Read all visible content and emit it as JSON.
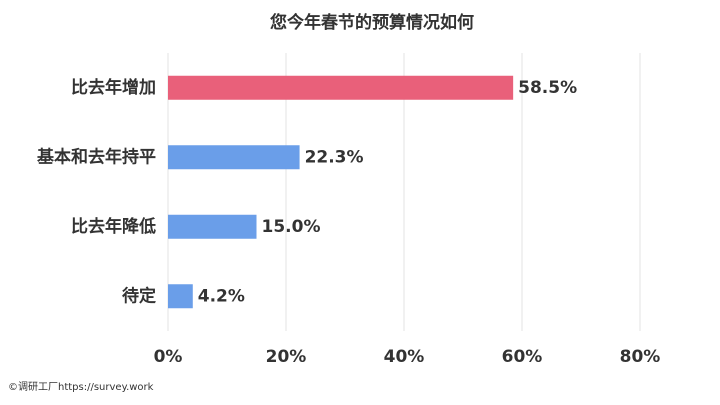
{
  "chart_data": {
    "type": "hbar",
    "title": "您今年春节的预算情况如何",
    "categories": [
      "比去年增加",
      "基本和去年持平",
      "比去年降低",
      "待定"
    ],
    "values": [
      58.5,
      22.3,
      15.0,
      4.2
    ],
    "value_labels": [
      "58.5%",
      "22.3%",
      "15.0%",
      "4.2%"
    ],
    "colors": [
      "#e9607a",
      "#6a9ee9",
      "#6a9ee9",
      "#6a9ee9"
    ],
    "xlim": [
      0,
      80
    ],
    "xticks": [
      {
        "value": 0,
        "label": "0%"
      },
      {
        "value": 20,
        "label": "20%"
      },
      {
        "value": 40,
        "label": "40%"
      },
      {
        "value": 60,
        "label": "60%"
      },
      {
        "value": 80,
        "label": "80%"
      }
    ],
    "grid": true,
    "source": "©调研工厂https://survey.work"
  }
}
